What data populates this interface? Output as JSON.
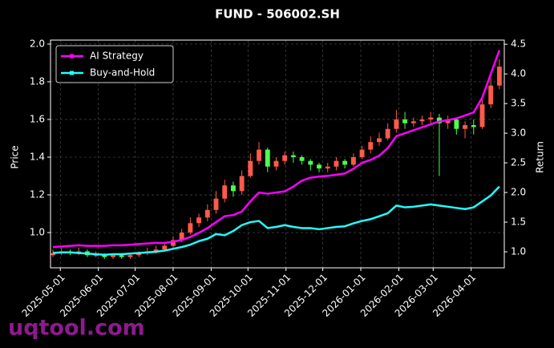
{
  "chart_data": {
    "type": "candlestick",
    "title": "FUND - 506002.SH",
    "ylabel": "Price",
    "y2label": "Return",
    "watermark": "uqtool.com",
    "grid": true,
    "legend": "upper left",
    "up_color": "#ff5a4a",
    "down_color": "#4dff4d",
    "x": [
      "2025-04-25",
      "2025-05-02",
      "2025-05-09",
      "2025-05-16",
      "2025-05-23",
      "2025-05-30",
      "2025-06-06",
      "2025-06-13",
      "2025-06-20",
      "2025-06-27",
      "2025-07-04",
      "2025-07-11",
      "2025-07-18",
      "2025-07-25",
      "2025-08-01",
      "2025-08-08",
      "2025-08-15",
      "2025-08-22",
      "2025-08-29",
      "2025-09-05",
      "2025-09-12",
      "2025-09-19",
      "2025-09-26",
      "2025-10-03",
      "2025-10-10",
      "2025-10-17",
      "2025-10-24",
      "2025-10-31",
      "2025-11-07",
      "2025-11-14",
      "2025-11-21",
      "2025-11-28",
      "2025-12-05",
      "2025-12-12",
      "2025-12-19",
      "2025-12-26",
      "2026-01-02",
      "2026-01-09",
      "2026-01-16",
      "2026-01-23",
      "2026-01-30",
      "2026-02-06",
      "2026-02-13",
      "2026-02-20",
      "2026-02-27",
      "2026-03-06",
      "2026-03-13",
      "2026-03-20",
      "2026-03-27",
      "2026-04-03",
      "2026-04-10",
      "2026-04-17",
      "2026-04-24"
    ],
    "open": [
      0.88,
      0.89,
      0.9,
      0.89,
      0.9,
      0.88,
      0.88,
      0.87,
      0.88,
      0.87,
      0.88,
      0.89,
      0.9,
      0.91,
      0.93,
      0.96,
      1.0,
      1.05,
      1.08,
      1.12,
      1.18,
      1.25,
      1.22,
      1.3,
      1.38,
      1.44,
      1.35,
      1.38,
      1.41,
      1.4,
      1.38,
      1.36,
      1.34,
      1.35,
      1.38,
      1.36,
      1.4,
      1.44,
      1.48,
      1.5,
      1.55,
      1.6,
      1.58,
      1.59,
      1.6,
      1.61,
      1.58,
      1.6,
      1.55,
      1.57,
      1.56,
      1.68,
      1.78
    ],
    "high": [
      0.91,
      0.92,
      0.91,
      0.92,
      0.91,
      0.9,
      0.89,
      0.89,
      0.89,
      0.89,
      0.9,
      0.92,
      0.93,
      0.95,
      0.98,
      1.02,
      1.08,
      1.1,
      1.15,
      1.22,
      1.28,
      1.27,
      1.33,
      1.42,
      1.48,
      1.45,
      1.4,
      1.43,
      1.43,
      1.41,
      1.39,
      1.37,
      1.37,
      1.4,
      1.39,
      1.42,
      1.46,
      1.51,
      1.53,
      1.58,
      1.65,
      1.64,
      1.61,
      1.62,
      1.64,
      1.63,
      1.62,
      1.61,
      1.59,
      1.6,
      1.71,
      1.82,
      1.92
    ],
    "low": [
      0.87,
      0.88,
      0.88,
      0.88,
      0.87,
      0.87,
      0.86,
      0.86,
      0.86,
      0.86,
      0.87,
      0.88,
      0.89,
      0.9,
      0.92,
      0.95,
      0.99,
      1.03,
      1.06,
      1.1,
      1.16,
      1.19,
      1.2,
      1.29,
      1.36,
      1.32,
      1.33,
      1.36,
      1.37,
      1.36,
      1.33,
      1.32,
      1.32,
      1.33,
      1.34,
      1.35,
      1.39,
      1.42,
      1.46,
      1.49,
      1.53,
      1.55,
      1.56,
      1.57,
      1.58,
      1.3,
      1.55,
      1.52,
      1.5,
      1.52,
      1.55,
      1.66,
      1.76
    ],
    "close": [
      0.89,
      0.9,
      0.89,
      0.9,
      0.88,
      0.88,
      0.87,
      0.88,
      0.87,
      0.88,
      0.89,
      0.9,
      0.91,
      0.93,
      0.96,
      1.0,
      1.05,
      1.08,
      1.12,
      1.18,
      1.25,
      1.22,
      1.3,
      1.38,
      1.44,
      1.35,
      1.38,
      1.41,
      1.4,
      1.38,
      1.36,
      1.34,
      1.35,
      1.38,
      1.36,
      1.4,
      1.44,
      1.48,
      1.5,
      1.55,
      1.6,
      1.58,
      1.59,
      1.6,
      1.61,
      1.58,
      1.6,
      1.55,
      1.57,
      1.56,
      1.68,
      1.78,
      1.88
    ],
    "series": [
      {
        "name": "AI Strategy",
        "color": "#ff00ff",
        "axis": "y2",
        "values": [
          1.08,
          1.09,
          1.1,
          1.11,
          1.1,
          1.1,
          1.1,
          1.11,
          1.11,
          1.12,
          1.13,
          1.14,
          1.15,
          1.15,
          1.17,
          1.2,
          1.25,
          1.32,
          1.4,
          1.5,
          1.6,
          1.62,
          1.68,
          1.85,
          2.0,
          1.98,
          2.0,
          2.02,
          2.1,
          2.2,
          2.25,
          2.27,
          2.28,
          2.3,
          2.32,
          2.4,
          2.5,
          2.55,
          2.62,
          2.75,
          2.95,
          3.0,
          3.05,
          3.1,
          3.15,
          3.2,
          3.22,
          3.25,
          3.3,
          3.35,
          3.6,
          4.0,
          4.4
        ]
      },
      {
        "name": "Buy-and-Hold",
        "color": "#22ffff",
        "axis": "y2",
        "values": [
          0.98,
          0.99,
          0.99,
          0.98,
          0.97,
          0.96,
          0.95,
          0.96,
          0.96,
          0.97,
          0.98,
          0.99,
          1.0,
          1.02,
          1.05,
          1.08,
          1.12,
          1.18,
          1.22,
          1.3,
          1.28,
          1.35,
          1.45,
          1.5,
          1.52,
          1.4,
          1.42,
          1.45,
          1.42,
          1.4,
          1.4,
          1.38,
          1.4,
          1.42,
          1.43,
          1.48,
          1.52,
          1.55,
          1.6,
          1.65,
          1.78,
          1.75,
          1.76,
          1.78,
          1.8,
          1.78,
          1.76,
          1.74,
          1.72,
          1.75,
          1.85,
          1.95,
          2.1
        ]
      }
    ],
    "xlim": [
      "2025-04-23",
      "2026-04-28"
    ],
    "xticks": [
      "2025-05-01",
      "2025-06-01",
      "2025-07-01",
      "2025-08-01",
      "2025-09-01",
      "2025-10-01",
      "2025-11-01",
      "2025-12-01",
      "2026-01-01",
      "2026-02-01",
      "2026-03-01",
      "2026-04-01"
    ],
    "ylim": [
      0.813,
      2.021
    ],
    "yticks": [
      {
        "value": 1,
        "label": "1.0"
      },
      1.2,
      1.4,
      1.6,
      1.8,
      {
        "value": 2,
        "label": "2.0"
      }
    ],
    "y2lim": [
      0.73,
      4.57
    ],
    "y2ticks": [
      {
        "value": 1,
        "label": "1.0"
      },
      1.5,
      {
        "value": 2,
        "label": "2.0"
      },
      2.5,
      {
        "value": 3,
        "label": "3.0"
      },
      3.5,
      {
        "value": 4,
        "label": "4.0"
      },
      4.5
    ]
  }
}
